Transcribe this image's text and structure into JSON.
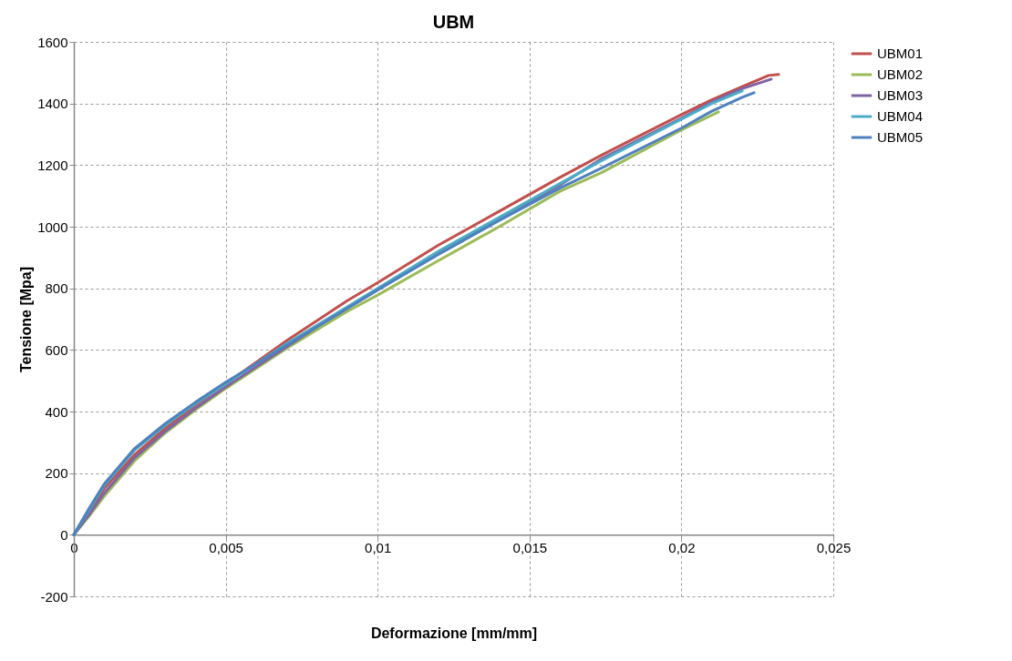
{
  "chart_data": {
    "type": "line",
    "title": "UBM",
    "xlabel": "Deformazione [mm/mm]",
    "ylabel": "Tensione [Mpa]",
    "xlim": [
      0,
      0.025
    ],
    "ylim": [
      -200,
      1600
    ],
    "xticks": [
      {
        "value": 0,
        "label": "0"
      },
      {
        "value": 0.005,
        "label": "0,005"
      },
      {
        "value": 0.01,
        "label": "0,01"
      },
      {
        "value": 0.015,
        "label": "0,015"
      },
      {
        "value": 0.02,
        "label": "0,02"
      },
      {
        "value": 0.025,
        "label": "0,025"
      }
    ],
    "yticks": [
      -200,
      0,
      200,
      400,
      600,
      800,
      1000,
      1200,
      1400,
      1600
    ],
    "grid": true,
    "legend": "right",
    "marker": "none",
    "line_style": "solid",
    "series": [
      {
        "name": "UBM01",
        "color": "#c0504d",
        "x": [
          0,
          0.0005,
          0.001,
          0.002,
          0.003,
          0.004,
          0.005,
          0.006,
          0.007,
          0.008,
          0.009,
          0.01,
          0.012,
          0.014,
          0.016,
          0.0174,
          0.02,
          0.021,
          0.022,
          0.02287,
          0.0232
        ],
        "values": [
          0,
          75,
          150,
          260,
          345,
          420,
          490,
          560,
          630,
          695,
          760,
          818,
          940,
          1050,
          1160,
          1234,
          1364,
          1412,
          1455,
          1491,
          1494
        ]
      },
      {
        "name": "UBM02",
        "color": "#9bbb59",
        "x": [
          0,
          0.0005,
          0.001,
          0.002,
          0.003,
          0.004,
          0.005,
          0.006,
          0.007,
          0.008,
          0.009,
          0.01,
          0.012,
          0.014,
          0.016,
          0.0174,
          0.02,
          0.02122
        ],
        "values": [
          0,
          60,
          125,
          240,
          330,
          405,
          475,
          540,
          605,
          665,
          725,
          778,
          890,
          1000,
          1115,
          1177,
          1314,
          1373
        ]
      },
      {
        "name": "UBM03",
        "color": "#8064a2",
        "x": [
          0,
          0.0005,
          0.001,
          0.002,
          0.003,
          0.004,
          0.005,
          0.006,
          0.007,
          0.008,
          0.009,
          0.01,
          0.012,
          0.014,
          0.016,
          0.0174,
          0.02,
          0.021,
          0.022,
          0.02296
        ],
        "values": [
          0,
          65,
          135,
          250,
          335,
          410,
          480,
          545,
          610,
          675,
          735,
          795,
          915,
          1025,
          1135,
          1222,
          1352,
          1405,
          1448,
          1479
        ]
      },
      {
        "name": "UBM04",
        "color": "#4bacc6",
        "x": [
          0,
          0.0005,
          0.001,
          0.002,
          0.003,
          0.004,
          0.005,
          0.006,
          0.007,
          0.008,
          0.009,
          0.01,
          0.012,
          0.014,
          0.016,
          0.0174,
          0.02,
          0.021,
          0.022
        ],
        "values": [
          0,
          80,
          160,
          275,
          355,
          425,
          490,
          555,
          620,
          680,
          740,
          800,
          920,
          1030,
          1140,
          1216,
          1349,
          1400,
          1441
        ]
      },
      {
        "name": "UBM05",
        "color": "#4f81bd",
        "x": [
          0,
          0.0005,
          0.001,
          0.002,
          0.003,
          0.004,
          0.005,
          0.006,
          0.007,
          0.008,
          0.009,
          0.01,
          0.012,
          0.014,
          0.016,
          0.0174,
          0.02,
          0.021,
          0.022,
          0.02239
        ],
        "values": [
          0,
          85,
          165,
          280,
          360,
          430,
          495,
          555,
          615,
          675,
          735,
          795,
          910,
          1020,
          1125,
          1192,
          1320,
          1375,
          1420,
          1435
        ]
      }
    ]
  }
}
